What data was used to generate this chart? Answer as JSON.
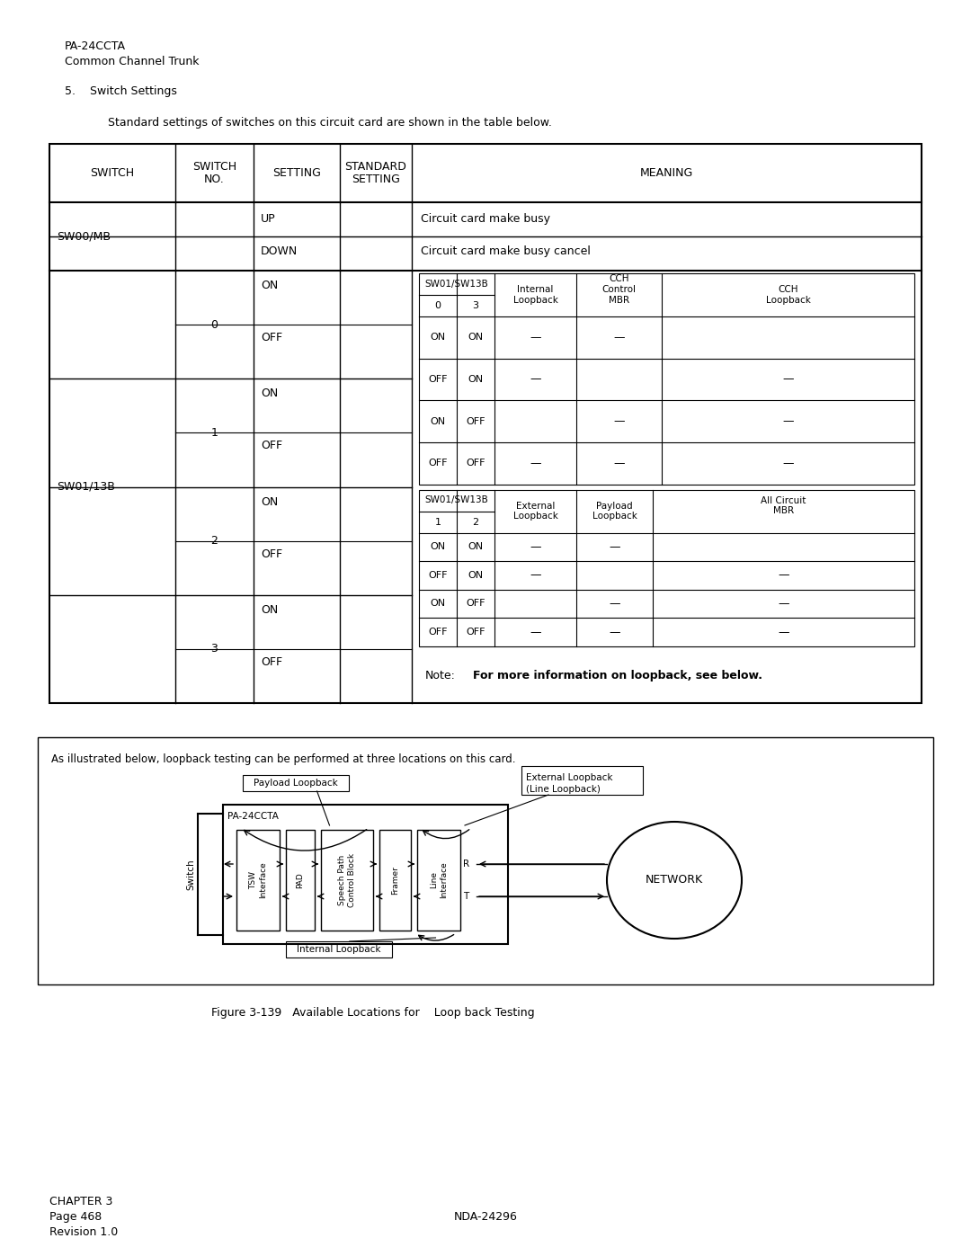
{
  "page_title1": "PA-24CCTA",
  "page_title2": "Common Channel Trunk",
  "section_num": "5.",
  "section_title": "Switch Settings",
  "intro_text": "Standard settings of switches on this circuit card are shown in the table below.",
  "note_text": "Note:",
  "note_bold": "For more information on loopback, see below.",
  "diagram_text": "As illustrated below, loopback testing can be performed at three locations on this card.",
  "figure_caption": "Figure 3-139   Available Locations for    Loop back Testing",
  "footer1": "CHAPTER 3",
  "footer2": "Page 468",
  "footer3": "Revision 1.0",
  "footer_right": "NDA-24296"
}
